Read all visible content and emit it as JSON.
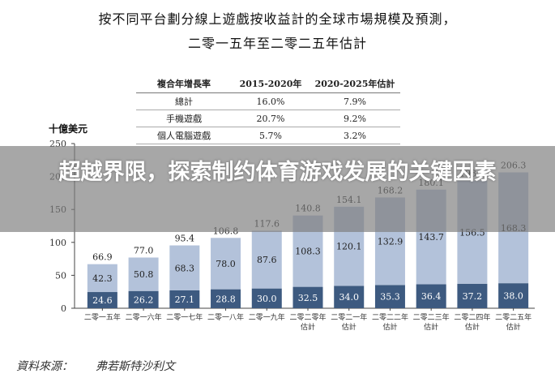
{
  "title_line1": "按不同平台劃分線上遊戲按收益計的全球市場規模及預測，",
  "title_line2": "二零一五年至二零二五年估計",
  "cagr_table": {
    "headers": [
      "複合年增長率",
      "2015-2020年",
      "2020-2025年估計"
    ],
    "rows": [
      [
        "總計",
        "16.0%",
        "7.9%"
      ],
      [
        "手機遊戲",
        "20.7%",
        "9.2%"
      ],
      [
        "個人電腦遊戲",
        "5.7%",
        "3.2%"
      ]
    ]
  },
  "banner_text": "超越界限，探索制约体育游戏发展的关键因素",
  "source_label": "資料來源：",
  "source_name": "弗若斯特沙利文",
  "colors": {
    "pc": "#3d5a80",
    "mobile": "#b3c2da",
    "banner": "#7d7d7d"
  },
  "chart_data": {
    "type": "bar",
    "stacked": true,
    "ylabel": "十億美元",
    "ylim": [
      0,
      250
    ],
    "yticks": [
      0,
      50,
      100,
      150,
      200,
      250
    ],
    "categories": [
      "二零一五年",
      "二零一六年",
      "二零一七年",
      "二零一八年",
      "二零一九年",
      "二零二零年估計",
      "二零二一年估計",
      "二零二二年估計",
      "二零二三年估計",
      "二零二四年估計",
      "二零二五年估計"
    ],
    "series": [
      {
        "values": [
          24.6,
          26.2,
          27.1,
          28.8,
          30.0,
          32.5,
          34.0,
          35.3,
          36.4,
          37.2,
          38.0
        ],
        "color": "#3d5a80"
      },
      {
        "values": [
          42.3,
          50.8,
          68.3,
          78.0,
          87.6,
          108.3,
          120.1,
          132.9,
          143.7,
          156.5,
          168.3
        ],
        "color": "#b3c2da"
      }
    ],
    "totals": [
      66.9,
      77.0,
      95.4,
      106.8,
      117.6,
      140.8,
      154.1,
      168.2,
      180.1,
      193.7,
      206.3
    ]
  }
}
